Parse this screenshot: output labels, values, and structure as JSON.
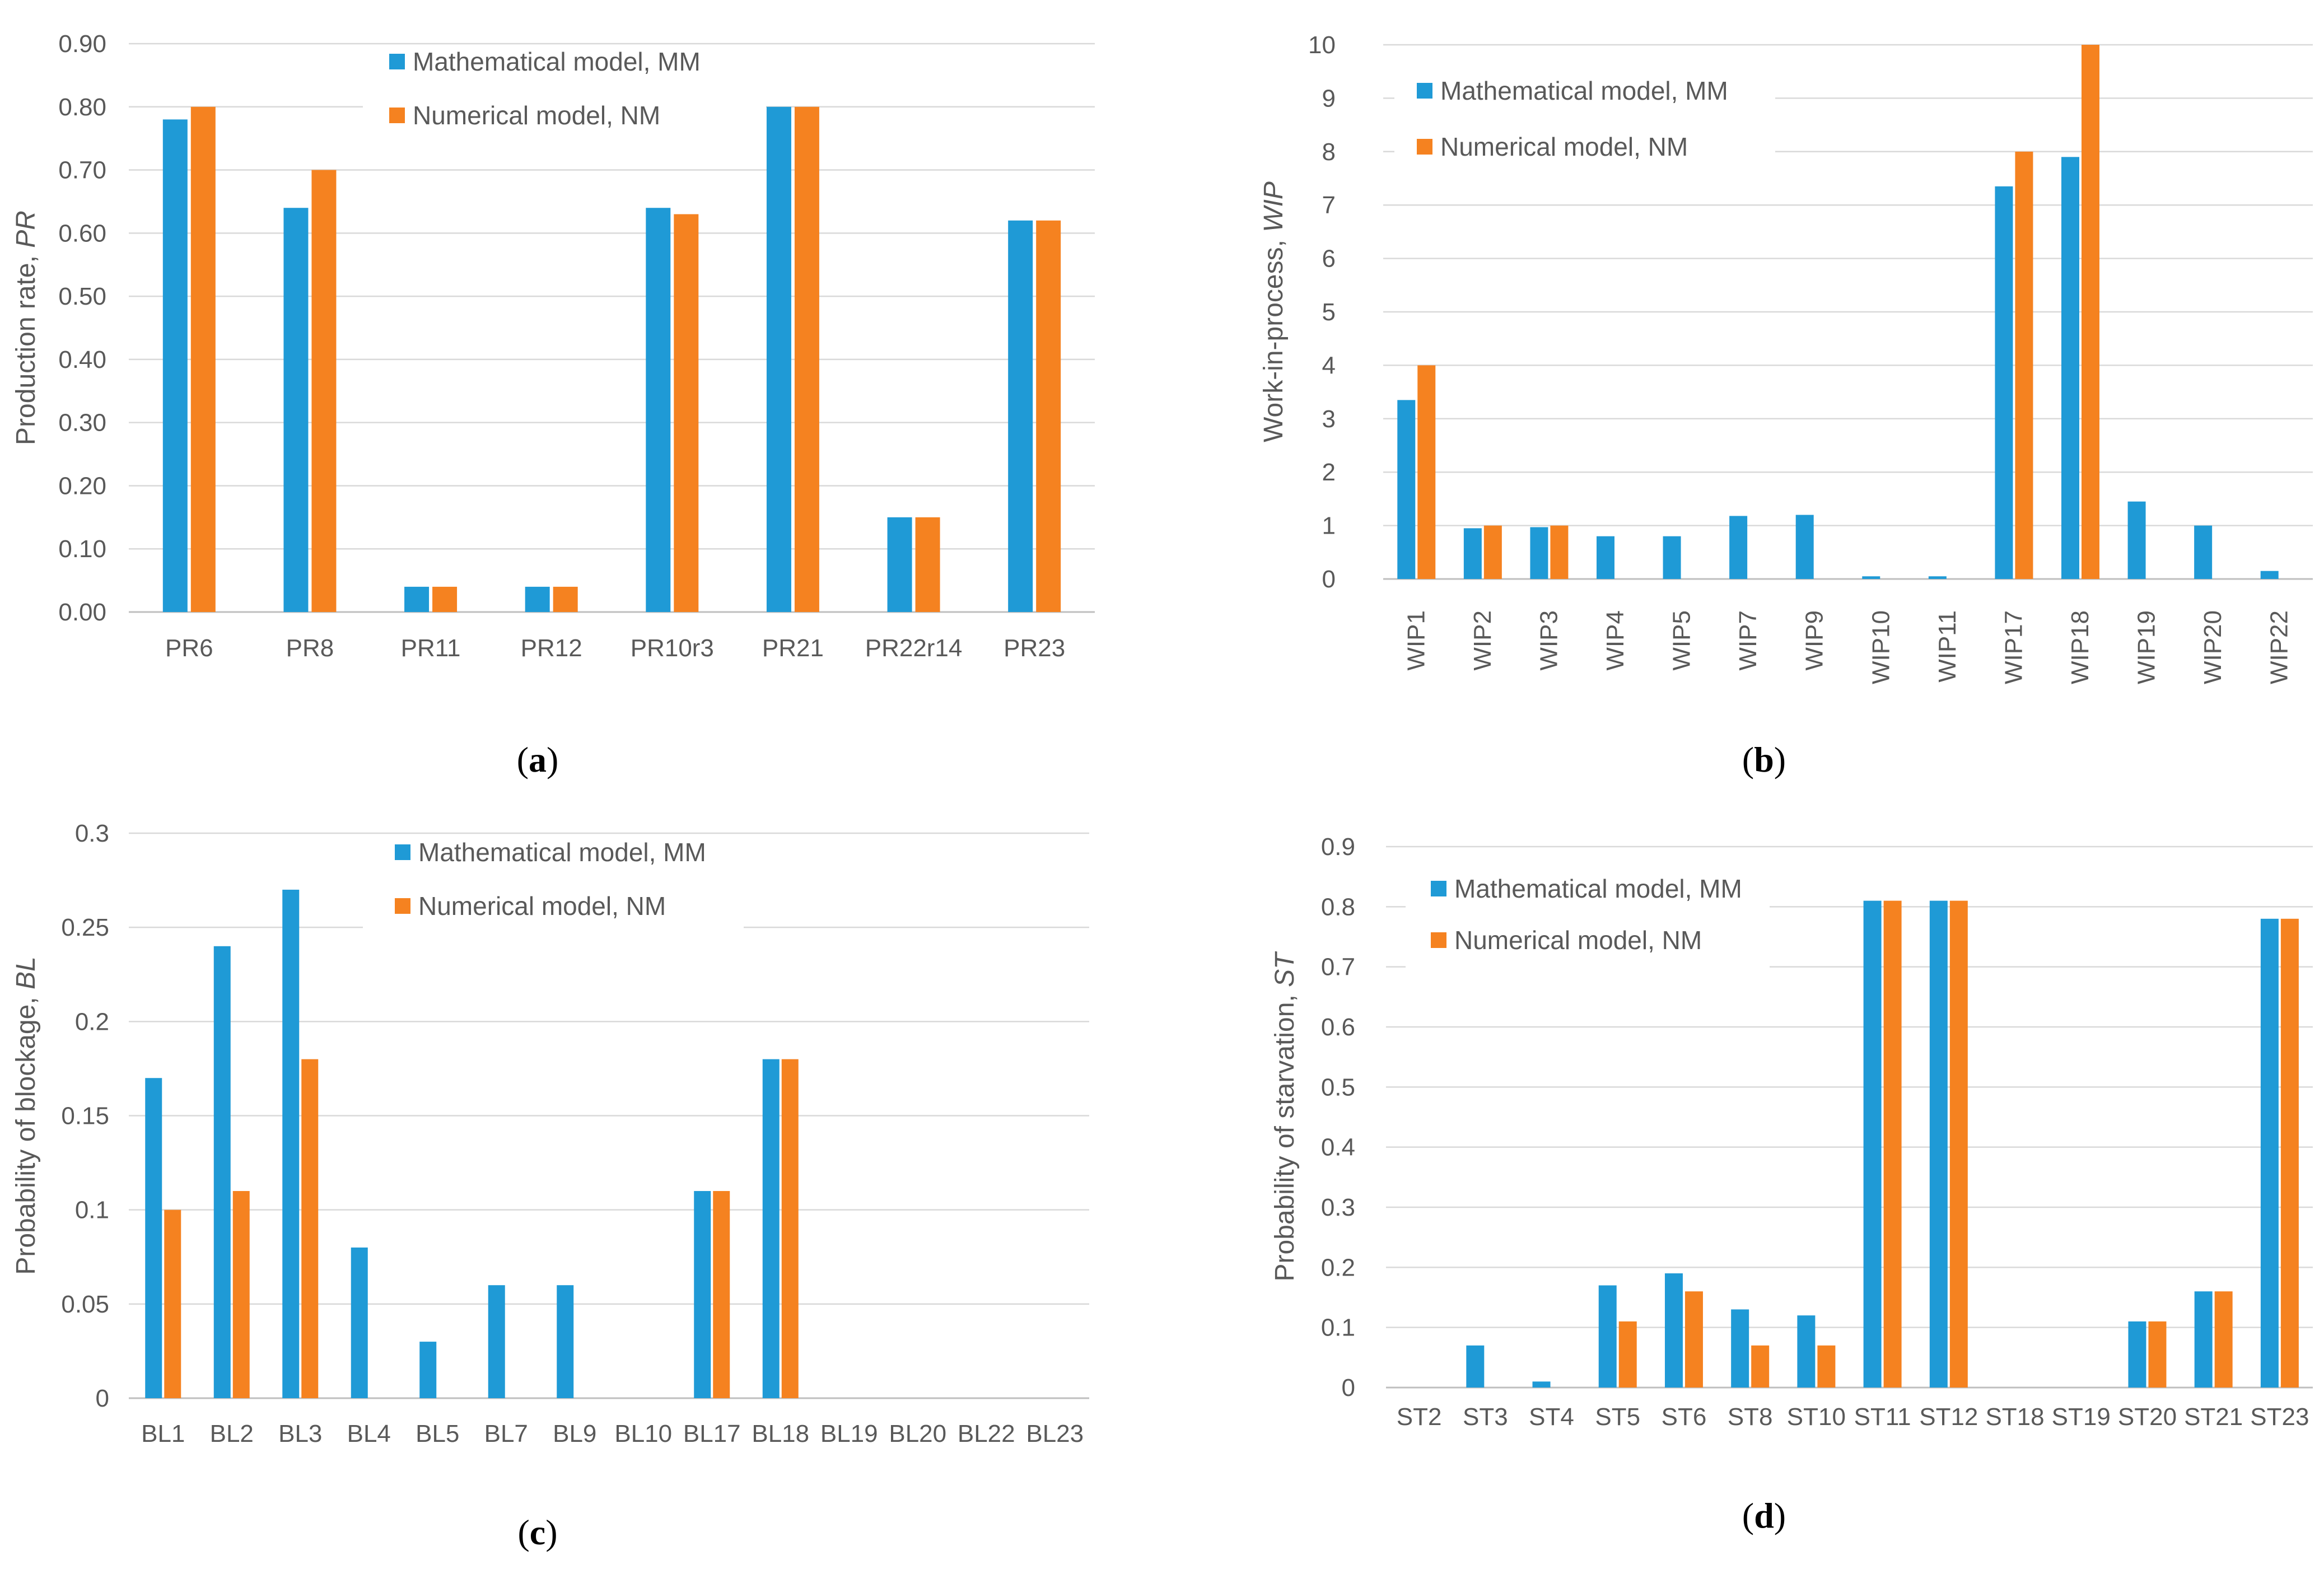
{
  "colors": {
    "mm": "#1f9ad6",
    "nm": "#f58220",
    "grid": "#d9d9d9",
    "axis": "#bfbfbf",
    "text": "#595959"
  },
  "chart_data": [
    {
      "id": "a",
      "type": "bar",
      "caption_letter": "a",
      "title": "",
      "xlabel": "",
      "ylabel_main": "Production rate, ",
      "ylabel_sym": "PR",
      "ylim": [
        0,
        0.9
      ],
      "yticks": [
        "0.00",
        "0.10",
        "0.20",
        "0.30",
        "0.40",
        "0.50",
        "0.60",
        "0.70",
        "0.80",
        "0.90"
      ],
      "categories": [
        "PR6",
        "PR8",
        "PR11",
        "PR12",
        "PR10r3",
        "PR21",
        "PR22r14",
        "PR23"
      ],
      "series": [
        {
          "name": "Mathematical model, MM",
          "values": [
            0.78,
            0.64,
            0.04,
            0.04,
            0.64,
            0.8,
            0.15,
            0.62
          ]
        },
        {
          "name": "Numerical model, NM",
          "values": [
            0.8,
            0.7,
            0.04,
            0.04,
            0.63,
            0.8,
            0.15,
            0.62
          ]
        }
      ],
      "legend": "top-center",
      "rotate_labels": false
    },
    {
      "id": "b",
      "type": "bar",
      "caption_letter": "b",
      "title": "",
      "xlabel": "",
      "ylabel_main": "Work-in-process, ",
      "ylabel_sym": "WIP",
      "ylim": [
        0,
        10
      ],
      "yticks": [
        "0",
        "1",
        "2",
        "3",
        "4",
        "5",
        "6",
        "7",
        "8",
        "9",
        "10"
      ],
      "categories": [
        "WIP1",
        "WIP2",
        "WIP3",
        "WIP4",
        "WIP5",
        "WIP7",
        "WIP9",
        "WIP10",
        "WIP11",
        "WIP17",
        "WIP18",
        "WIP19",
        "WIP20",
        "WIP22"
      ],
      "series": [
        {
          "name": "Mathematical model, MM",
          "values": [
            3.35,
            0.95,
            0.97,
            0.8,
            0.8,
            1.18,
            1.2,
            0.05,
            0.05,
            7.35,
            7.9,
            1.45,
            1.0,
            0.15
          ]
        },
        {
          "name": "Numerical model, NM",
          "values": [
            4,
            1,
            1,
            0,
            0,
            0,
            0,
            0,
            0,
            8,
            10,
            0,
            0,
            0
          ]
        }
      ],
      "legend": "top-left",
      "rotate_labels": true
    },
    {
      "id": "c",
      "type": "bar",
      "caption_letter": "c",
      "title": "",
      "xlabel": "",
      "ylabel_main": "Probability of blockage, ",
      "ylabel_sym": "BL",
      "ylim": [
        0,
        0.3
      ],
      "yticks": [
        "0",
        "0.05",
        "0.1",
        "0.15",
        "0.2",
        "0.25",
        "0.3"
      ],
      "categories": [
        "BL1",
        "BL2",
        "BL3",
        "BL4",
        "BL5",
        "BL7",
        "BL9",
        "BL10",
        "BL17",
        "BL18",
        "BL19",
        "BL20",
        "BL22",
        "BL23"
      ],
      "series": [
        {
          "name": "Mathematical model, MM",
          "values": [
            0.17,
            0.24,
            0.27,
            0.08,
            0.03,
            0.06,
            0.06,
            0,
            0.11,
            0.18,
            0,
            0,
            0,
            0
          ]
        },
        {
          "name": "Numerical model, NM",
          "values": [
            0.1,
            0.11,
            0.18,
            0,
            0,
            0,
            0,
            0,
            0.11,
            0.18,
            0,
            0,
            0,
            0
          ]
        }
      ],
      "legend": "top-center",
      "rotate_labels": false
    },
    {
      "id": "d",
      "type": "bar",
      "caption_letter": "d",
      "title": "",
      "xlabel": "",
      "ylabel_main": "Probability of starvation, ",
      "ylabel_sym": "ST",
      "ylim": [
        0,
        0.9
      ],
      "yticks": [
        "0",
        "0.1",
        "0.2",
        "0.3",
        "0.4",
        "0.5",
        "0.6",
        "0.7",
        "0.8",
        "0.9"
      ],
      "categories": [
        "ST2",
        "ST3",
        "ST4",
        "ST5",
        "ST6",
        "ST8",
        "ST10",
        "ST11",
        "ST12",
        "ST18",
        "ST19",
        "ST20",
        "ST21",
        "ST23"
      ],
      "series": [
        {
          "name": "Mathematical model, MM",
          "values": [
            0,
            0.07,
            0.01,
            0.17,
            0.19,
            0.13,
            0.12,
            0.81,
            0.81,
            0,
            0,
            0.11,
            0.16,
            0.78
          ]
        },
        {
          "name": "Numerical model, NM",
          "values": [
            0,
            0,
            0,
            0.11,
            0.16,
            0.07,
            0.07,
            0.81,
            0.81,
            0,
            0,
            0.11,
            0.16,
            0.78
          ]
        }
      ],
      "legend": "top-left",
      "rotate_labels": false
    }
  ]
}
